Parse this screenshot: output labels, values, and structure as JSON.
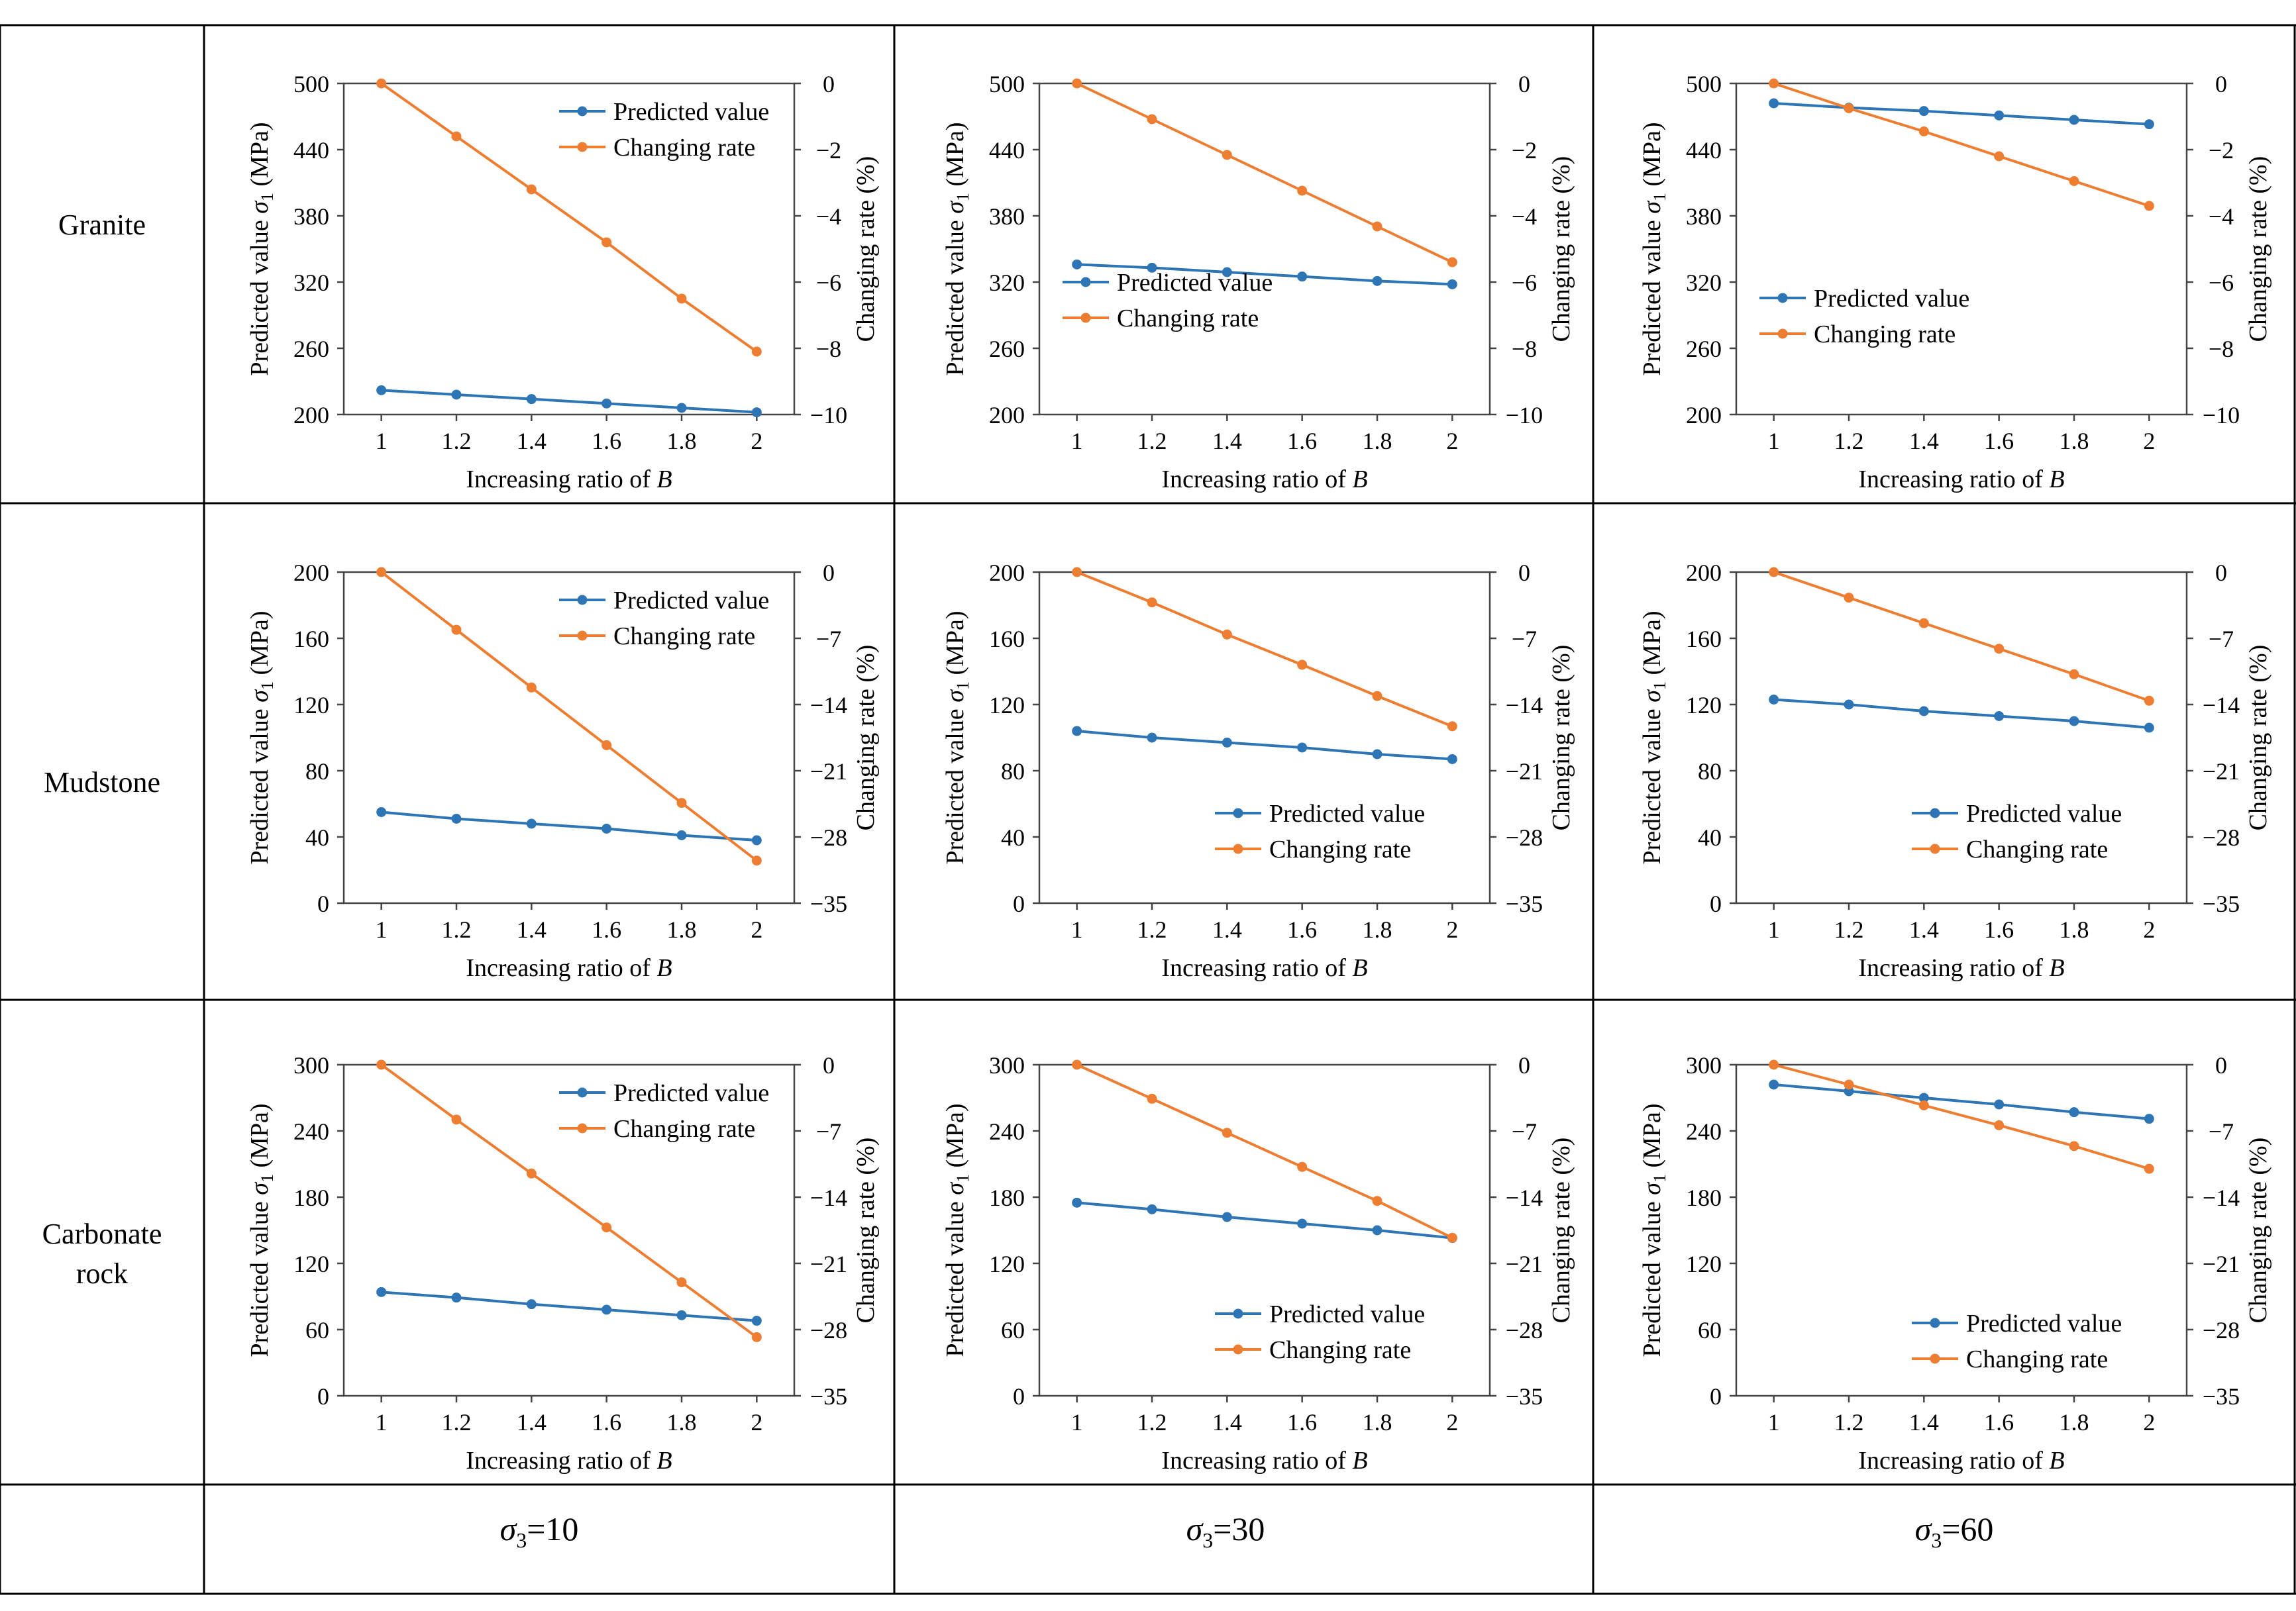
{
  "table": {
    "rows": [
      {
        "label_lines": [
          "Granite"
        ]
      },
      {
        "label_lines": [
          "Mudstone"
        ]
      },
      {
        "label_lines": [
          "Carbonate",
          "rock"
        ]
      }
    ],
    "columns": [
      {
        "symbol": "σ",
        "sub": "3",
        "eq": "=10"
      },
      {
        "symbol": "σ",
        "sub": "3",
        "eq": "=30"
      },
      {
        "symbol": "σ",
        "sub": "3",
        "eq": "=60"
      }
    ]
  },
  "colors": {
    "predicted": "#2E75B6",
    "changing": "#ED7D31",
    "grid_line": "#000000"
  },
  "chart_common": {
    "xlabel_prefix": "Increasing ratio of ",
    "xlabel_var": "B",
    "ylabel_left_prefix": "Predicted value ",
    "ylabel_left_sym": "σ",
    "ylabel_left_sub": "1",
    "ylabel_left_suffix": " (MPa)",
    "ylabel_right": "Changing rate (%)",
    "x": [
      1,
      1.2,
      1.4,
      1.6,
      1.8,
      2
    ],
    "x_tick_labels": [
      "1",
      "1.2",
      "1.4",
      "1.6",
      "1.8",
      "2"
    ],
    "legend": [
      "Predicted value",
      "Changing rate"
    ]
  },
  "chart_data": [
    {
      "type": "line",
      "rock": "Granite",
      "sigma3": "10",
      "left_ylim": [
        200,
        500
      ],
      "left_ticks": [
        200,
        260,
        320,
        380,
        440,
        500
      ],
      "right_ylim": [
        -10,
        0
      ],
      "right_ticks": [
        0,
        -2,
        -4,
        -6,
        -8,
        -10
      ],
      "series": [
        {
          "name": "Predicted value",
          "axis": "left",
          "values": [
            222,
            218,
            214,
            210,
            206,
            202
          ]
        },
        {
          "name": "Changing rate",
          "axis": "right",
          "values": [
            0,
            -1.6,
            -3.2,
            -4.8,
            -6.5,
            -8.1
          ]
        }
      ],
      "legend_pos": "top-right"
    },
    {
      "type": "line",
      "rock": "Granite",
      "sigma3": "30",
      "left_ylim": [
        200,
        500
      ],
      "left_ticks": [
        200,
        260,
        320,
        380,
        440,
        500
      ],
      "right_ylim": [
        -10,
        0
      ],
      "right_ticks": [
        0,
        -2,
        -4,
        -6,
        -8,
        -10
      ],
      "series": [
        {
          "name": "Predicted value",
          "axis": "left",
          "values": [
            336,
            333,
            329,
            325,
            321,
            318
          ]
        },
        {
          "name": "Changing rate",
          "axis": "right",
          "values": [
            0,
            -1.08,
            -2.16,
            -3.24,
            -4.32,
            -5.4
          ]
        }
      ],
      "legend_pos": "middle-left"
    },
    {
      "type": "line",
      "rock": "Granite",
      "sigma3": "60",
      "left_ylim": [
        200,
        500
      ],
      "left_ticks": [
        200,
        260,
        320,
        380,
        440,
        500
      ],
      "right_ylim": [
        -10,
        0
      ],
      "right_ticks": [
        0,
        -2,
        -4,
        -6,
        -8,
        -10
      ],
      "series": [
        {
          "name": "Predicted value",
          "axis": "left",
          "values": [
            482,
            478,
            475,
            471,
            467,
            463
          ]
        },
        {
          "name": "Changing rate",
          "axis": "right",
          "values": [
            0,
            -0.75,
            -1.45,
            -2.2,
            -2.95,
            -3.7
          ]
        }
      ],
      "legend_pos": "middle-left"
    },
    {
      "type": "line",
      "rock": "Mudstone",
      "sigma3": "10",
      "left_ylim": [
        0,
        200
      ],
      "left_ticks": [
        0,
        40,
        80,
        120,
        160,
        200
      ],
      "right_ylim": [
        -35,
        0
      ],
      "right_ticks": [
        0,
        -7,
        -14,
        -21,
        -28,
        -35
      ],
      "series": [
        {
          "name": "Predicted value",
          "axis": "left",
          "values": [
            55,
            51,
            48,
            45,
            41,
            38
          ]
        },
        {
          "name": "Changing rate",
          "axis": "right",
          "values": [
            0,
            -6.1,
            -12.2,
            -18.3,
            -24.4,
            -30.5
          ]
        }
      ],
      "legend_pos": "top-right"
    },
    {
      "type": "line",
      "rock": "Mudstone",
      "sigma3": "30",
      "left_ylim": [
        0,
        200
      ],
      "left_ticks": [
        0,
        40,
        80,
        120,
        160,
        200
      ],
      "right_ylim": [
        -35,
        0
      ],
      "right_ticks": [
        0,
        -7,
        -14,
        -21,
        -28,
        -35
      ],
      "series": [
        {
          "name": "Predicted value",
          "axis": "left",
          "values": [
            104,
            100,
            97,
            94,
            90,
            87
          ]
        },
        {
          "name": "Changing rate",
          "axis": "right",
          "values": [
            0,
            -3.2,
            -6.6,
            -9.8,
            -13.1,
            -16.3
          ]
        }
      ],
      "legend_pos": "bottom-right"
    },
    {
      "type": "line",
      "rock": "Mudstone",
      "sigma3": "60",
      "left_ylim": [
        0,
        200
      ],
      "left_ticks": [
        0,
        40,
        80,
        120,
        160,
        200
      ],
      "right_ylim": [
        -35,
        0
      ],
      "right_ticks": [
        0,
        -7,
        -14,
        -21,
        -28,
        -35
      ],
      "series": [
        {
          "name": "Predicted value",
          "axis": "left",
          "values": [
            123,
            120,
            116,
            113,
            110,
            106
          ]
        },
        {
          "name": "Changing rate",
          "axis": "right",
          "values": [
            0,
            -2.7,
            -5.4,
            -8.1,
            -10.8,
            -13.6
          ]
        }
      ],
      "legend_pos": "bottom-right"
    },
    {
      "type": "line",
      "rock": "Carbonate rock",
      "sigma3": "10",
      "left_ylim": [
        0,
        300
      ],
      "left_ticks": [
        0,
        60,
        120,
        180,
        240,
        300
      ],
      "right_ylim": [
        -35,
        0
      ],
      "right_ticks": [
        0,
        -7,
        -14,
        -21,
        -28,
        -35
      ],
      "series": [
        {
          "name": "Predicted value",
          "axis": "left",
          "values": [
            94,
            89,
            83,
            78,
            73,
            68
          ]
        },
        {
          "name": "Changing rate",
          "axis": "right",
          "values": [
            0,
            -5.8,
            -11.5,
            -17.2,
            -23,
            -28.8
          ]
        }
      ],
      "legend_pos": "top-right"
    },
    {
      "type": "line",
      "rock": "Carbonate rock",
      "sigma3": "30",
      "left_ylim": [
        0,
        300
      ],
      "left_ticks": [
        0,
        60,
        120,
        180,
        240,
        300
      ],
      "right_ylim": [
        -35,
        0
      ],
      "right_ticks": [
        0,
        -7,
        -14,
        -21,
        -28,
        -35
      ],
      "series": [
        {
          "name": "Predicted value",
          "axis": "left",
          "values": [
            175,
            169,
            162,
            156,
            150,
            143
          ]
        },
        {
          "name": "Changing rate",
          "axis": "right",
          "values": [
            0,
            -3.6,
            -7.2,
            -10.8,
            -14.4,
            -18.3
          ]
        }
      ],
      "legend_pos": "bottom-right"
    },
    {
      "type": "line",
      "rock": "Carbonate rock",
      "sigma3": "60",
      "left_ylim": [
        0,
        300
      ],
      "left_ticks": [
        0,
        60,
        120,
        180,
        240,
        300
      ],
      "right_ylim": [
        -35,
        0
      ],
      "right_ticks": [
        0,
        -7,
        -14,
        -21,
        -28,
        -35
      ],
      "series": [
        {
          "name": "Predicted value",
          "axis": "left",
          "values": [
            282,
            276,
            270,
            264,
            257,
            251
          ]
        },
        {
          "name": "Changing rate",
          "axis": "right",
          "values": [
            0,
            -2.1,
            -4.3,
            -6.4,
            -8.6,
            -11
          ]
        }
      ],
      "legend_pos": "bottom-right"
    }
  ]
}
